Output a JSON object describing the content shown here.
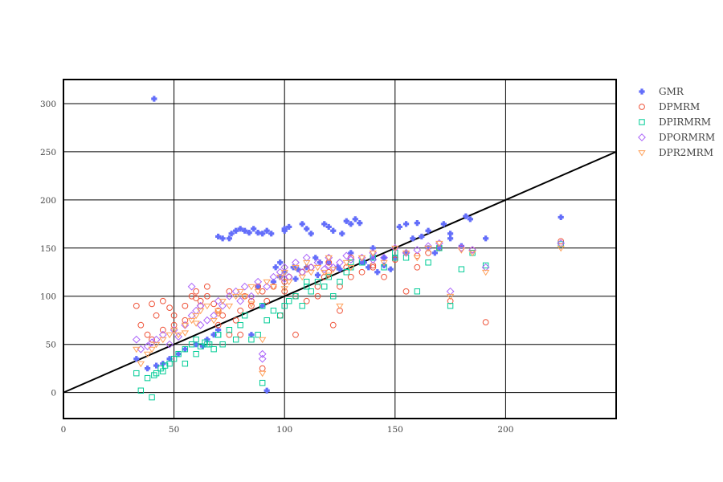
{
  "chart_data": {
    "type": "scatter",
    "title": "",
    "xlabel": "",
    "ylabel": "",
    "xlim": [
      0,
      250
    ],
    "ylim": [
      -27,
      325
    ],
    "x_ticks": [
      0,
      50,
      100,
      150,
      200
    ],
    "y_ticks": [
      0,
      50,
      100,
      150,
      200,
      250,
      300
    ],
    "grid": true,
    "legend_position": "top-right-outside",
    "reference_line": {
      "x": [
        0,
        250
      ],
      "y": [
        0,
        250
      ],
      "color": "#000000"
    },
    "series": [
      {
        "name": "GMR",
        "color": "#636efa",
        "symbol": "cross",
        "x": [
          41,
          33,
          38,
          42,
          45,
          48,
          52,
          55,
          60,
          63,
          65,
          68,
          70,
          70,
          72,
          75,
          76,
          78,
          80,
          82,
          84,
          86,
          88,
          90,
          92,
          94,
          96,
          98,
          98,
          100,
          100,
          102,
          104,
          106,
          108,
          110,
          112,
          114,
          116,
          118,
          120,
          122,
          124,
          126,
          128,
          130,
          130,
          132,
          134,
          136,
          138,
          140,
          140,
          142,
          145,
          148,
          150,
          152,
          155,
          158,
          160,
          162,
          165,
          168,
          170,
          172,
          175,
          180,
          182,
          184,
          191,
          225,
          90,
          85,
          88,
          95,
          105,
          115,
          125,
          135,
          145,
          155,
          165,
          175,
          100,
          110,
          120,
          92
        ],
        "y": [
          305,
          35,
          25,
          28,
          30,
          35,
          40,
          45,
          50,
          48,
          55,
          60,
          65,
          162,
          160,
          160,
          165,
          168,
          170,
          168,
          166,
          170,
          166,
          165,
          168,
          165,
          130,
          135,
          120,
          170,
          168,
          172,
          130,
          128,
          175,
          170,
          165,
          140,
          135,
          175,
          172,
          168,
          130,
          165,
          178,
          175,
          145,
          180,
          176,
          135,
          130,
          150,
          140,
          125,
          132,
          128,
          140,
          172,
          175,
          160,
          176,
          162,
          168,
          145,
          150,
          175,
          165,
          152,
          183,
          180,
          160,
          182,
          90,
          60,
          110,
          115,
          118,
          122,
          128,
          135,
          140,
          145,
          150,
          160,
          125,
          130,
          135,
          2
        ]
      },
      {
        "name": "DPMRM",
        "color": "#ef553b",
        "symbol": "circle-open",
        "x": [
          33,
          35,
          38,
          40,
          42,
          45,
          48,
          50,
          55,
          58,
          60,
          62,
          62,
          65,
          68,
          70,
          72,
          75,
          78,
          80,
          82,
          85,
          88,
          90,
          92,
          95,
          98,
          100,
          102,
          105,
          108,
          110,
          112,
          115,
          118,
          120,
          122,
          125,
          128,
          130,
          135,
          140,
          145,
          150,
          155,
          160,
          165,
          170,
          175,
          180,
          185,
          191,
          225,
          40,
          45,
          50,
          55,
          60,
          65,
          70,
          75,
          80,
          85,
          90,
          100,
          105,
          110,
          115,
          120,
          125,
          130,
          140,
          150,
          160,
          170
        ],
        "y": [
          90,
          70,
          60,
          92,
          80,
          95,
          88,
          70,
          75,
          100,
          105,
          90,
          95,
          110,
          92,
          85,
          80,
          105,
          75,
          60,
          100,
          90,
          110,
          25,
          95,
          110,
          80,
          105,
          120,
          100,
          125,
          95,
          130,
          110,
          120,
          125,
          70,
          110,
          130,
          120,
          125,
          130,
          120,
          140,
          105,
          130,
          145,
          150,
          95,
          150,
          148,
          73,
          157,
          55,
          65,
          80,
          90,
          98,
          100,
          70,
          60,
          85,
          95,
          105,
          115,
          60,
          128,
          100,
          135,
          85,
          140,
          132,
          138,
          142,
          150
        ]
      },
      {
        "name": "DPIRMRM",
        "color": "#00cc96",
        "symbol": "square-open",
        "x": [
          33,
          35,
          38,
          40,
          42,
          44,
          46,
          48,
          50,
          52,
          55,
          58,
          60,
          62,
          64,
          66,
          68,
          70,
          72,
          75,
          78,
          80,
          82,
          85,
          88,
          90,
          92,
          95,
          98,
          100,
          102,
          105,
          108,
          110,
          112,
          115,
          118,
          120,
          122,
          125,
          128,
          130,
          135,
          140,
          145,
          150,
          155,
          160,
          165,
          170,
          175,
          180,
          185,
          191,
          225,
          41,
          45,
          55,
          60,
          65,
          70,
          90,
          110,
          130,
          150
        ],
        "y": [
          20,
          2,
          15,
          -5,
          20,
          25,
          28,
          30,
          35,
          40,
          45,
          50,
          55,
          48,
          52,
          50,
          45,
          60,
          50,
          65,
          55,
          70,
          80,
          55,
          60,
          10,
          75,
          85,
          80,
          90,
          95,
          100,
          90,
          110,
          105,
          115,
          110,
          120,
          100,
          115,
          125,
          130,
          135,
          140,
          130,
          145,
          140,
          105,
          135,
          150,
          90,
          128,
          145,
          132,
          154,
          18,
          22,
          30,
          40,
          50,
          60,
          90,
          115,
          135,
          140
        ]
      },
      {
        "name": "DPORMRM",
        "color": "#ab63fa",
        "symbol": "diamond-open",
        "x": [
          33,
          35,
          38,
          40,
          42,
          45,
          48,
          50,
          52,
          55,
          58,
          60,
          62,
          65,
          68,
          70,
          72,
          75,
          78,
          80,
          82,
          85,
          88,
          90,
          92,
          95,
          98,
          100,
          102,
          105,
          108,
          110,
          112,
          115,
          118,
          120,
          122,
          125,
          128,
          130,
          135,
          140,
          145,
          150,
          155,
          160,
          165,
          170,
          175,
          180,
          185,
          191,
          225,
          90,
          62,
          58,
          100,
          120,
          140
        ],
        "y": [
          55,
          45,
          48,
          52,
          55,
          60,
          50,
          65,
          58,
          70,
          80,
          85,
          90,
          75,
          80,
          95,
          90,
          100,
          105,
          95,
          110,
          100,
          115,
          35,
          110,
          120,
          125,
          130,
          120,
          135,
          125,
          140,
          130,
          135,
          128,
          140,
          130,
          135,
          142,
          138,
          140,
          145,
          140,
          150,
          145,
          148,
          152,
          155,
          105,
          150,
          148,
          130,
          155,
          40,
          70,
          110,
          118,
          132,
          138
        ]
      },
      {
        "name": "DPR2MRM",
        "color": "#ffa15a",
        "symbol": "triangle-down-open",
        "x": [
          33,
          35,
          38,
          40,
          42,
          45,
          48,
          50,
          52,
          55,
          58,
          60,
          62,
          65,
          68,
          70,
          72,
          75,
          78,
          80,
          82,
          85,
          88,
          90,
          92,
          95,
          98,
          100,
          102,
          105,
          108,
          110,
          112,
          115,
          118,
          120,
          122,
          125,
          128,
          130,
          135,
          140,
          145,
          150,
          155,
          160,
          165,
          170,
          175,
          180,
          185,
          191,
          225,
          90,
          55,
          60,
          70,
          85,
          100,
          120
        ],
        "y": [
          45,
          30,
          40,
          45,
          50,
          55,
          60,
          65,
          60,
          70,
          75,
          80,
          85,
          90,
          75,
          85,
          95,
          90,
          100,
          105,
          100,
          110,
          105,
          20,
          115,
          110,
          120,
          125,
          115,
          130,
          120,
          135,
          125,
          130,
          125,
          140,
          128,
          90,
          135,
          130,
          140,
          145,
          135,
          150,
          145,
          140,
          150,
          155,
          100,
          148,
          145,
          125,
          150,
          55,
          62,
          72,
          82,
          92,
          108,
          122
        ]
      }
    ]
  }
}
